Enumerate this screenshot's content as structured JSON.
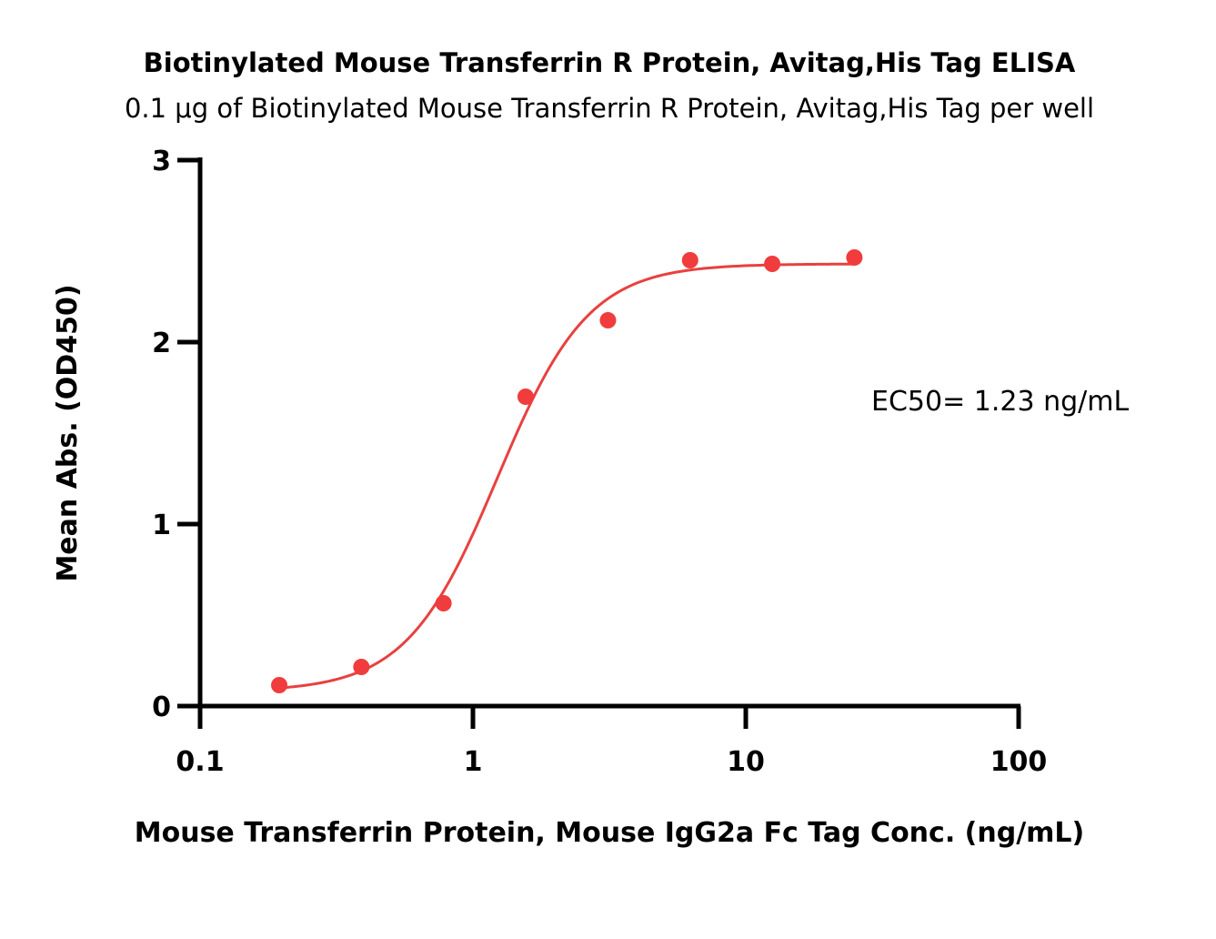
{
  "chart_data": {
    "type": "scatter",
    "title": "Biotinylated Mouse Transferrin R Protein, Avitag,His Tag ELISA",
    "subtitle": "0.1 μg of Biotinylated Mouse Transferrin R Protein, Avitag,His Tag per well",
    "xlabel": "Mouse Transferrin Protein, Mouse IgG2a Fc Tag Conc. (ng/mL)",
    "ylabel": "Mean Abs. (OD450)",
    "xscale": "log",
    "xlim": [
      0.1,
      100
    ],
    "ylim": [
      0,
      3
    ],
    "xticks": [
      0.1,
      1,
      10,
      100
    ],
    "xtick_labels": [
      "0.1",
      "1",
      "10",
      "100"
    ],
    "yticks": [
      0,
      1,
      2,
      3
    ],
    "ytick_labels": [
      "0",
      "1",
      "2",
      "3"
    ],
    "grid": false,
    "series": [
      {
        "name": "Mouse Transferrin Protein, Mouse IgG2a Fc Tag",
        "color": "#f03c3c",
        "x": [
          0.195,
          0.39,
          0.78,
          1.56,
          3.125,
          6.25,
          12.5,
          25
        ],
        "y": [
          0.115,
          0.215,
          0.565,
          1.7,
          2.12,
          2.45,
          2.43,
          2.465
        ]
      }
    ],
    "fit": {
      "model": "4PL",
      "bottom": 0.08,
      "top": 2.43,
      "ec50": 1.23,
      "hill": 2.6,
      "x_range": [
        0.195,
        25
      ],
      "color": "#e8413f"
    },
    "annotations": [
      {
        "text": "EC50= 1.23 ng/mL"
      }
    ]
  }
}
